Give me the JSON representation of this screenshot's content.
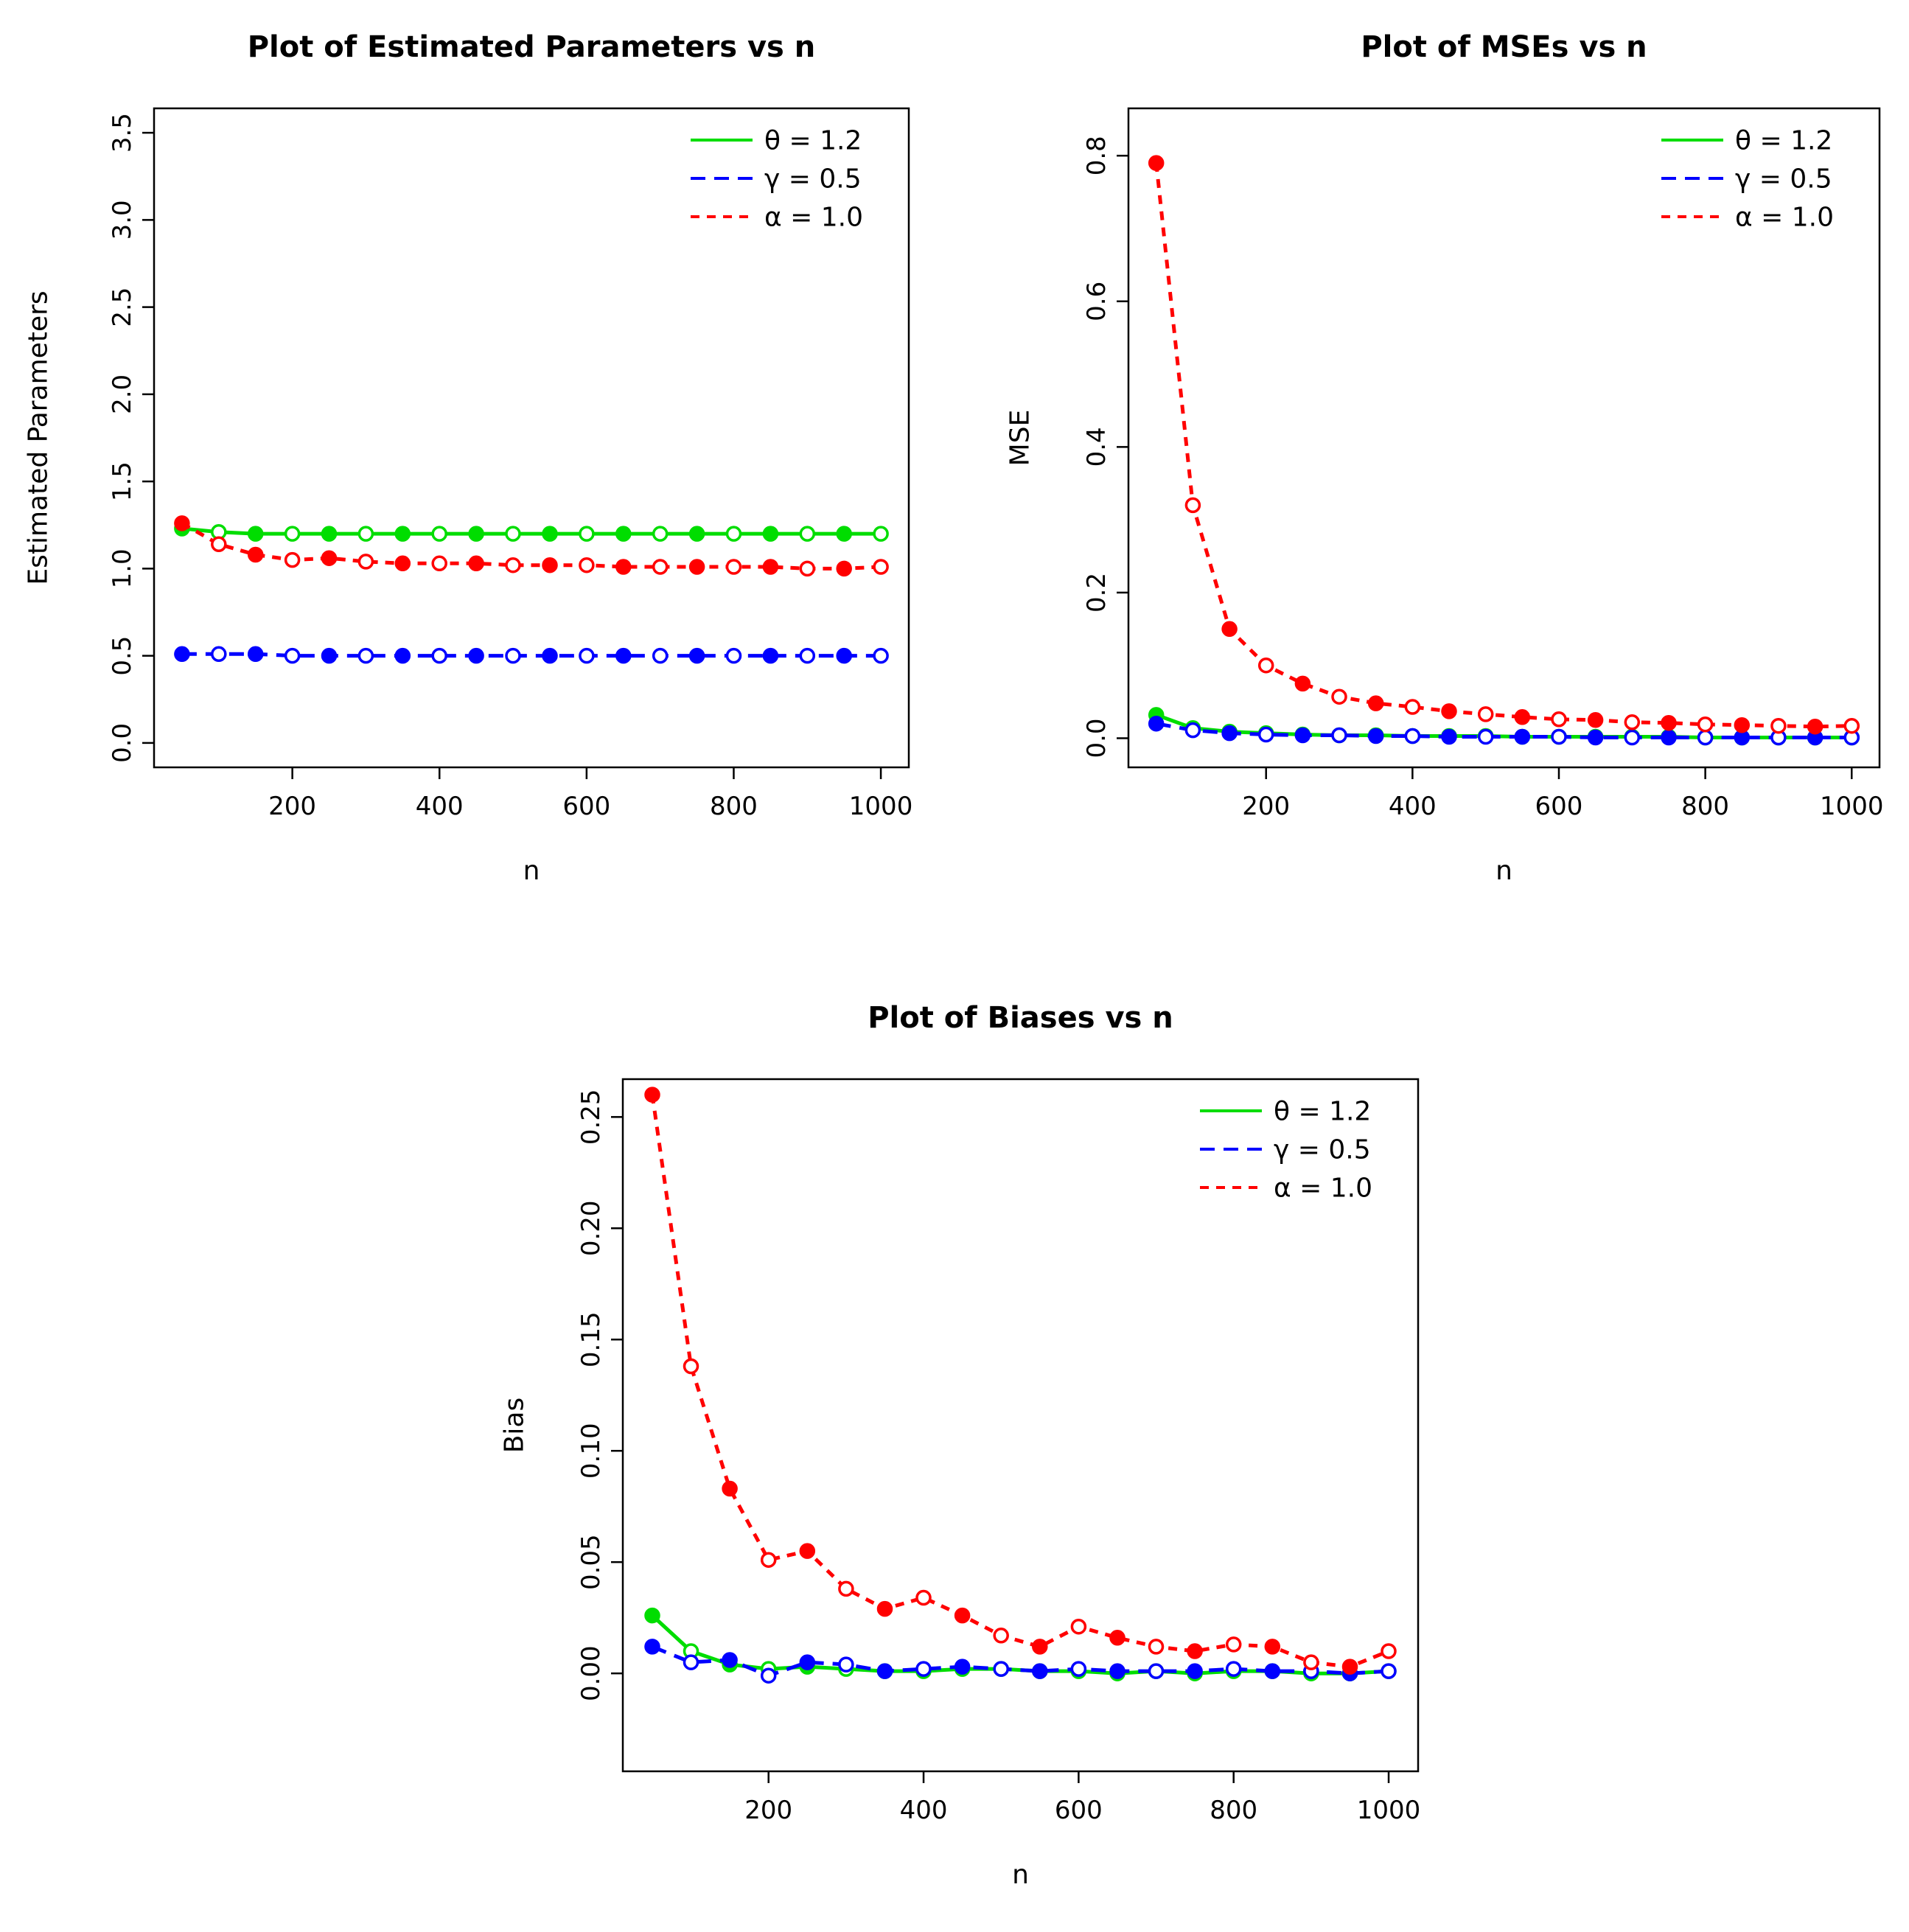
{
  "page": {
    "background": "#ffffff",
    "text_color": "#000000"
  },
  "chart_data": [
    {
      "id": "params",
      "type": "line",
      "title": "Plot of Estimated Parameters vs n",
      "xlabel": "n",
      "ylabel": "Estimated Parameters",
      "xlim": [
        12,
        1038
      ],
      "ylim": [
        -0.14,
        3.64
      ],
      "xticks": [
        200,
        400,
        600,
        800,
        1000
      ],
      "xtick_labels": [
        "200",
        "400",
        "600",
        "800",
        "1000"
      ],
      "yticks": [
        0.0,
        0.5,
        1.0,
        1.5,
        2.0,
        2.5,
        3.0,
        3.5
      ],
      "ytick_labels": [
        "0.0",
        "0.5",
        "1.0",
        "1.5",
        "2.0",
        "2.5",
        "3.0",
        "3.5"
      ],
      "grid": false,
      "legend_position": "topright",
      "x": [
        50,
        100,
        150,
        200,
        250,
        300,
        350,
        400,
        450,
        500,
        550,
        600,
        650,
        700,
        750,
        800,
        850,
        900,
        950,
        1000
      ],
      "series": [
        {
          "name": "theta",
          "label": "θ = 1.2",
          "color": "#00DD00",
          "linestyle": "solid",
          "values": [
            1.23,
            1.21,
            1.2,
            1.2,
            1.2,
            1.2,
            1.2,
            1.2,
            1.2,
            1.2,
            1.2,
            1.2,
            1.2,
            1.2,
            1.2,
            1.2,
            1.2,
            1.2,
            1.2,
            1.2
          ]
        },
        {
          "name": "gamma",
          "label": "γ = 0.5",
          "color": "#0000FF",
          "linestyle": "dashed",
          "values": [
            0.51,
            0.51,
            0.51,
            0.5,
            0.5,
            0.5,
            0.5,
            0.5,
            0.5,
            0.5,
            0.5,
            0.5,
            0.5,
            0.5,
            0.5,
            0.5,
            0.5,
            0.5,
            0.5,
            0.5
          ]
        },
        {
          "name": "alpha",
          "label": "α = 1.0",
          "color": "#FF0000",
          "linestyle": "dashed-short",
          "values": [
            1.26,
            1.14,
            1.08,
            1.05,
            1.06,
            1.04,
            1.03,
            1.03,
            1.03,
            1.02,
            1.02,
            1.02,
            1.01,
            1.01,
            1.01,
            1.01,
            1.01,
            1.0,
            1.0,
            1.01
          ]
        }
      ]
    },
    {
      "id": "mse",
      "type": "line",
      "title": "Plot of MSEs vs n",
      "xlabel": "n",
      "ylabel": "MSE",
      "xlim": [
        12,
        1038
      ],
      "ylim": [
        -0.04,
        0.865
      ],
      "xticks": [
        200,
        400,
        600,
        800,
        1000
      ],
      "xtick_labels": [
        "200",
        "400",
        "600",
        "800",
        "1000"
      ],
      "yticks": [
        0.0,
        0.2,
        0.4,
        0.6,
        0.8
      ],
      "ytick_labels": [
        "0.0",
        "0.2",
        "0.4",
        "0.6",
        "0.8"
      ],
      "grid": false,
      "legend_position": "topright",
      "x": [
        50,
        100,
        150,
        200,
        250,
        300,
        350,
        400,
        450,
        500,
        550,
        600,
        650,
        700,
        750,
        800,
        850,
        900,
        950,
        1000
      ],
      "series": [
        {
          "name": "theta",
          "label": "θ = 1.2",
          "color": "#00DD00",
          "linestyle": "solid",
          "values": [
            0.032,
            0.014,
            0.009,
            0.007,
            0.005,
            0.004,
            0.004,
            0.003,
            0.003,
            0.003,
            0.002,
            0.002,
            0.002,
            0.002,
            0.002,
            0.001,
            0.001,
            0.001,
            0.001,
            0.001
          ]
        },
        {
          "name": "gamma",
          "label": "γ = 0.5",
          "color": "#0000FF",
          "linestyle": "dashed",
          "values": [
            0.02,
            0.011,
            0.007,
            0.005,
            0.004,
            0.004,
            0.003,
            0.003,
            0.002,
            0.002,
            0.002,
            0.002,
            0.001,
            0.001,
            0.001,
            0.001,
            0.001,
            0.001,
            0.001,
            0.001
          ]
        },
        {
          "name": "alpha",
          "label": "α = 1.0",
          "color": "#FF0000",
          "linestyle": "dashed-short",
          "values": [
            0.79,
            0.32,
            0.15,
            0.1,
            0.075,
            0.057,
            0.048,
            0.043,
            0.037,
            0.033,
            0.029,
            0.026,
            0.025,
            0.022,
            0.021,
            0.019,
            0.018,
            0.017,
            0.016,
            0.017
          ]
        }
      ]
    },
    {
      "id": "bias",
      "type": "line",
      "title": "Plot of Biases vs n",
      "xlabel": "n",
      "ylabel": "Bias",
      "xlim": [
        12,
        1038
      ],
      "ylim": [
        -0.044,
        0.267
      ],
      "xticks": [
        200,
        400,
        600,
        800,
        1000
      ],
      "xtick_labels": [
        "200",
        "400",
        "600",
        "800",
        "1000"
      ],
      "yticks": [
        0.0,
        0.05,
        0.1,
        0.15,
        0.2,
        0.25
      ],
      "ytick_labels": [
        "0.00",
        "0.05",
        "0.10",
        "0.15",
        "0.20",
        "0.25"
      ],
      "grid": false,
      "legend_position": "topright",
      "x": [
        50,
        100,
        150,
        200,
        250,
        300,
        350,
        400,
        450,
        500,
        550,
        600,
        650,
        700,
        750,
        800,
        850,
        900,
        950,
        1000
      ],
      "series": [
        {
          "name": "theta",
          "label": "θ = 1.2",
          "color": "#00DD00",
          "linestyle": "solid",
          "values": [
            0.026,
            0.01,
            0.004,
            0.002,
            0.003,
            0.002,
            0.001,
            0.001,
            0.002,
            0.002,
            0.001,
            0.001,
            0.0,
            0.001,
            0.0,
            0.001,
            0.001,
            0.0,
            0.0,
            0.001
          ]
        },
        {
          "name": "gamma",
          "label": "γ = 0.5",
          "color": "#0000FF",
          "linestyle": "dashed",
          "values": [
            0.012,
            0.005,
            0.006,
            -0.001,
            0.005,
            0.004,
            0.001,
            0.002,
            0.003,
            0.002,
            0.001,
            0.002,
            0.001,
            0.001,
            0.001,
            0.002,
            0.001,
            0.001,
            0.0,
            0.001
          ]
        },
        {
          "name": "alpha",
          "label": "α = 1.0",
          "color": "#FF0000",
          "linestyle": "dashed-short",
          "values": [
            0.26,
            0.138,
            0.083,
            0.051,
            0.055,
            0.038,
            0.029,
            0.034,
            0.026,
            0.017,
            0.012,
            0.021,
            0.016,
            0.012,
            0.01,
            0.013,
            0.012,
            0.005,
            0.003,
            0.01
          ]
        }
      ]
    }
  ]
}
